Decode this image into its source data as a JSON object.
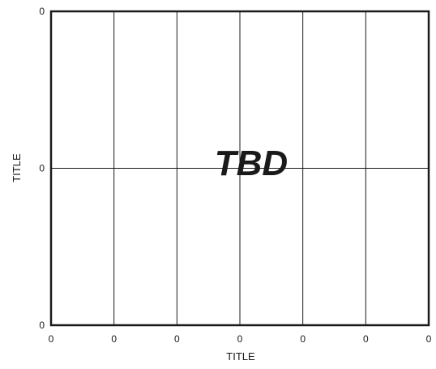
{
  "chart_data": {
    "type": "line",
    "xlabel": "TITLE",
    "ylabel": "TITLE",
    "x_ticks": [
      "0",
      "0",
      "0",
      "0",
      "0",
      "0",
      "0"
    ],
    "y_ticks": [
      "0",
      "0",
      "0"
    ],
    "grid": true,
    "annotation": "TBD",
    "series": []
  },
  "colors": {
    "axis": "#1a1a1a",
    "grid": "#1a1a1a",
    "text": "#1a1a1a"
  }
}
